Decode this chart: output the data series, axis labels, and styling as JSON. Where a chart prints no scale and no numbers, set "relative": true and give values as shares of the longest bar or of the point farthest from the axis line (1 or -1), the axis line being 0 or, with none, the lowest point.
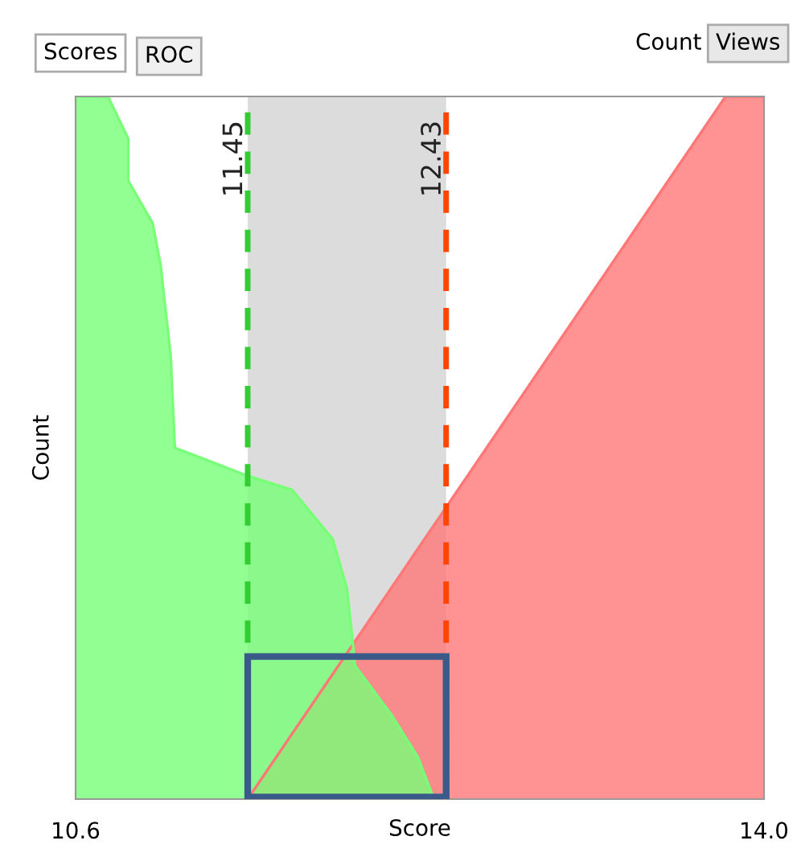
{
  "chart_data": {
    "type": "area",
    "relative": true,
    "xlabel": "Score",
    "ylabel": "Count",
    "xlim": [
      10.6,
      14.0
    ],
    "xticks": [
      10.6,
      {
        "value": 14,
        "label": "14.0"
      }
    ],
    "tick_labels": "x",
    "series": [
      {
        "color": "#ff7777",
        "x": [
          11.45,
          13.81,
          14.0
        ],
        "values": [
          0,
          1,
          1
        ]
      },
      {
        "color": "#77ff77",
        "x": [
          10.6,
          10.76,
          10.86,
          10.86,
          10.98,
          11.02,
          11.07,
          11.09,
          11.45,
          11.67,
          11.87,
          11.94,
          11.97,
          11.98,
          12.16,
          12.29,
          12.37
        ],
        "values": [
          1,
          1,
          0.94,
          0.88,
          0.82,
          0.76,
          0.63,
          0.5,
          0.46,
          0.44,
          0.37,
          0.3,
          0.22,
          0.19,
          0.12,
          0.06,
          0
        ]
      }
    ],
    "bands": [
      {
        "axis": "x",
        "from": 11.45,
        "to": 12.43,
        "color": "#dcdcdc"
      }
    ],
    "ref_lines": [
      {
        "axis": "x",
        "value": 11.45,
        "label": "11.45",
        "color": "#33cc33",
        "line_style": "dashed"
      },
      {
        "axis": "x",
        "value": 12.43,
        "label": "12.43",
        "color": "#ff4500",
        "line_style": "dashed"
      }
    ],
    "annotations": [
      "Scores",
      "ROC",
      "Count",
      "Views"
    ],
    "legend": false,
    "grid": false
  }
}
